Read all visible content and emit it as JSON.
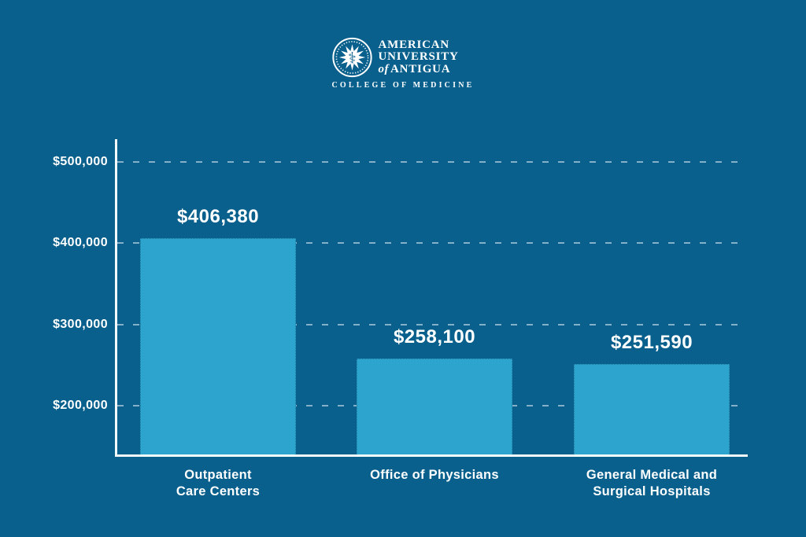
{
  "page": {
    "background_color": "#09608D",
    "text_color": "#FFFFFF"
  },
  "logo": {
    "seal_icon": "aua-seal-caduceus-icon",
    "line1": "AMERICAN",
    "line2": "UNIVERSITY",
    "line3_of": "of",
    "line3_rest": "ANTIGUA",
    "subtitle": "COLLEGE OF MEDICINE"
  },
  "chart_data": {
    "type": "bar",
    "title": "",
    "categories": [
      "Outpatient\nCare Centers",
      "Office of Physicians",
      "General Medical and\nSurgical Hospitals"
    ],
    "values": [
      406380,
      258100,
      251590
    ],
    "value_labels": [
      "$406,380",
      "$258,100",
      "$251,590"
    ],
    "y_ticks": [
      500000,
      400000,
      300000,
      200000
    ],
    "y_tick_labels": [
      "$500,000",
      "$400,000",
      "$300,000",
      "$200,000"
    ],
    "ylim": [
      140000,
      530000
    ],
    "xlabel": "",
    "ylabel": "",
    "grid": "dashed-horizontal",
    "legend": "none",
    "bar_color": "#2CA4CE",
    "axis_color": "#F4F9FC",
    "gridline_color": "rgba(235,244,248,0.55)"
  }
}
